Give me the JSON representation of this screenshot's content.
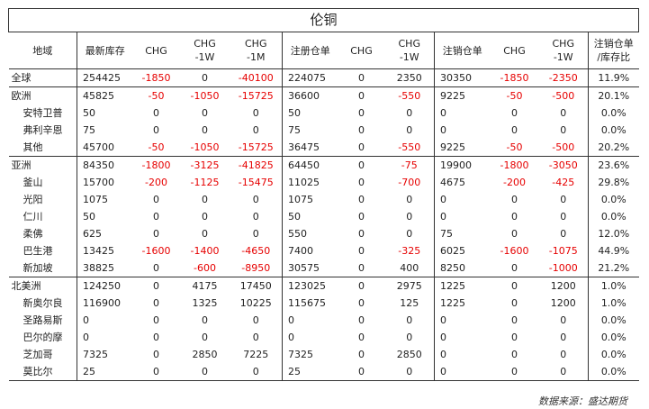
{
  "title": "伦铜",
  "source": "数据来源：盛达期货",
  "columns": [
    {
      "label": "地域"
    },
    {
      "label": "最新库存"
    },
    {
      "label": "CHG"
    },
    {
      "label": "CHG\n-1W"
    },
    {
      "label": "CHG\n-1M"
    },
    {
      "label": "注册仓单"
    },
    {
      "label": "CHG"
    },
    {
      "label": "CHG\n-1W"
    },
    {
      "label": "注销仓单"
    },
    {
      "label": "CHG"
    },
    {
      "label": "CHG\n-1W"
    },
    {
      "label": "注销仓单\n/库存比"
    }
  ],
  "rows": [
    {
      "region": "全球",
      "inventory": "254425",
      "chg": "-1850",
      "chg_1w": "0",
      "chg_1m": "-40100",
      "registered": "224075",
      "reg_chg": "0",
      "reg_chg_1w": "2350",
      "cancelled": "30350",
      "can_chg": "-1850",
      "can_chg_1w": "-2350",
      "ratio": "11.9%"
    },
    {
      "region": "欧洲",
      "inventory": "45825",
      "chg": "-50",
      "chg_1w": "-1050",
      "chg_1m": "-15725",
      "registered": "36600",
      "reg_chg": "0",
      "reg_chg_1w": "-550",
      "cancelled": "9225",
      "can_chg": "-50",
      "can_chg_1w": "-500",
      "ratio": "20.1%"
    },
    {
      "region": "安特卫普",
      "inventory": "50",
      "chg": "0",
      "chg_1w": "0",
      "chg_1m": "0",
      "registered": "50",
      "reg_chg": "0",
      "reg_chg_1w": "0",
      "cancelled": "0",
      "can_chg": "0",
      "can_chg_1w": "0",
      "ratio": "0.0%"
    },
    {
      "region": "弗利辛恩",
      "inventory": "75",
      "chg": "0",
      "chg_1w": "0",
      "chg_1m": "0",
      "registered": "75",
      "reg_chg": "0",
      "reg_chg_1w": "0",
      "cancelled": "0",
      "can_chg": "0",
      "can_chg_1w": "0",
      "ratio": "0.0%"
    },
    {
      "region": "其他",
      "inventory": "45700",
      "chg": "-50",
      "chg_1w": "-1050",
      "chg_1m": "-15725",
      "registered": "36475",
      "reg_chg": "0",
      "reg_chg_1w": "-550",
      "cancelled": "9225",
      "can_chg": "-50",
      "can_chg_1w": "-500",
      "ratio": "20.2%"
    },
    {
      "region": "亚洲",
      "inventory": "84350",
      "chg": "-1800",
      "chg_1w": "-3125",
      "chg_1m": "-41825",
      "registered": "64450",
      "reg_chg": "0",
      "reg_chg_1w": "-75",
      "cancelled": "19900",
      "can_chg": "-1800",
      "can_chg_1w": "-3050",
      "ratio": "23.6%"
    },
    {
      "region": "釜山",
      "inventory": "15700",
      "chg": "-200",
      "chg_1w": "-1125",
      "chg_1m": "-15475",
      "registered": "11025",
      "reg_chg": "0",
      "reg_chg_1w": "-700",
      "cancelled": "4675",
      "can_chg": "-200",
      "can_chg_1w": "-425",
      "ratio": "29.8%"
    },
    {
      "region": "光阳",
      "inventory": "1075",
      "chg": "0",
      "chg_1w": "0",
      "chg_1m": "0",
      "registered": "1075",
      "reg_chg": "0",
      "reg_chg_1w": "0",
      "cancelled": "0",
      "can_chg": "0",
      "can_chg_1w": "0",
      "ratio": "0.0%"
    },
    {
      "region": "仁川",
      "inventory": "50",
      "chg": "0",
      "chg_1w": "0",
      "chg_1m": "0",
      "registered": "50",
      "reg_chg": "0",
      "reg_chg_1w": "0",
      "cancelled": "0",
      "can_chg": "0",
      "can_chg_1w": "0",
      "ratio": "0.0%"
    },
    {
      "region": "柔佛",
      "inventory": "625",
      "chg": "0",
      "chg_1w": "0",
      "chg_1m": "0",
      "registered": "550",
      "reg_chg": "0",
      "reg_chg_1w": "0",
      "cancelled": "75",
      "can_chg": "0",
      "can_chg_1w": "0",
      "ratio": "12.0%"
    },
    {
      "region": "巴生港",
      "inventory": "13425",
      "chg": "-1600",
      "chg_1w": "-1400",
      "chg_1m": "-4650",
      "registered": "7400",
      "reg_chg": "0",
      "reg_chg_1w": "-325",
      "cancelled": "6025",
      "can_chg": "-1600",
      "can_chg_1w": "-1075",
      "ratio": "44.9%"
    },
    {
      "region": "新加坡",
      "inventory": "38825",
      "chg": "0",
      "chg_1w": "-600",
      "chg_1m": "-8950",
      "registered": "30575",
      "reg_chg": "0",
      "reg_chg_1w": "400",
      "cancelled": "8250",
      "can_chg": "0",
      "can_chg_1w": "-1000",
      "ratio": "21.2%"
    },
    {
      "region": "北美洲",
      "inventory": "124250",
      "chg": "0",
      "chg_1w": "4175",
      "chg_1m": "17450",
      "registered": "123025",
      "reg_chg": "0",
      "reg_chg_1w": "2975",
      "cancelled": "1225",
      "can_chg": "0",
      "can_chg_1w": "1200",
      "ratio": "1.0%"
    },
    {
      "region": "新奥尔良",
      "inventory": "116900",
      "chg": "0",
      "chg_1w": "1325",
      "chg_1m": "10225",
      "registered": "115675",
      "reg_chg": "0",
      "reg_chg_1w": "125",
      "cancelled": "1225",
      "can_chg": "0",
      "can_chg_1w": "1200",
      "ratio": "1.0%"
    },
    {
      "region": "圣路易斯",
      "inventory": "0",
      "chg": "0",
      "chg_1w": "0",
      "chg_1m": "0",
      "registered": "0",
      "reg_chg": "0",
      "reg_chg_1w": "0",
      "cancelled": "0",
      "can_chg": "0",
      "can_chg_1w": "0",
      "ratio": "0.0%"
    },
    {
      "region": "巴尔的摩",
      "inventory": "0",
      "chg": "0",
      "chg_1w": "0",
      "chg_1m": "0",
      "registered": "0",
      "reg_chg": "0",
      "reg_chg_1w": "0",
      "cancelled": "0",
      "can_chg": "0",
      "can_chg_1w": "0",
      "ratio": "0.0%"
    },
    {
      "region": "芝加哥",
      "inventory": "7325",
      "chg": "0",
      "chg_1w": "2850",
      "chg_1m": "7225",
      "registered": "7325",
      "reg_chg": "0",
      "reg_chg_1w": "2850",
      "cancelled": "0",
      "can_chg": "0",
      "can_chg_1w": "0",
      "ratio": "0.0%"
    },
    {
      "region": "莫比尔",
      "inventory": "25",
      "chg": "0",
      "chg_1w": "0",
      "chg_1m": "0",
      "registered": "25",
      "reg_chg": "0",
      "reg_chg_1w": "0",
      "cancelled": "0",
      "can_chg": "0",
      "can_chg_1w": "0",
      "ratio": "0.0%"
    }
  ],
  "colors": {
    "negative": "#e60000",
    "text": "#222222",
    "rule": "#333333"
  }
}
